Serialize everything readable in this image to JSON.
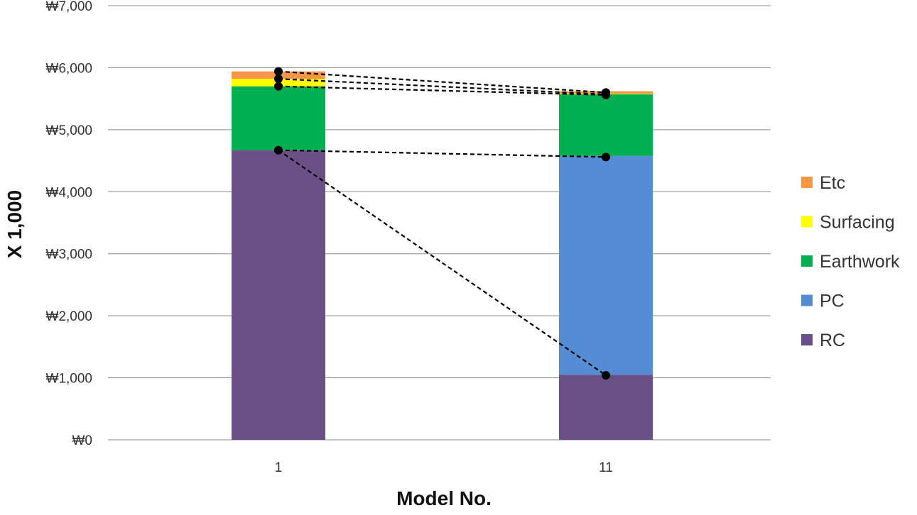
{
  "chart_data": {
    "type": "bar",
    "stacked": true,
    "categories": [
      "1",
      "11"
    ],
    "xlabel": "Model No.",
    "ylabel": "X 1,000",
    "ylim": [
      0,
      7000
    ],
    "yticks": [
      0,
      1000,
      2000,
      3000,
      4000,
      5000,
      6000,
      7000
    ],
    "ytick_labels": [
      "₩0",
      "₩1,000",
      "₩2,000",
      "₩3,000",
      "₩4,000",
      "₩5,000",
      "₩6,000",
      "₩7,000"
    ],
    "grid": true,
    "legend_position": "right",
    "series": [
      {
        "name": "RC",
        "color": "#6a5087",
        "values": [
          4670,
          1050
        ]
      },
      {
        "name": "PC",
        "color": "#548dd4",
        "values": [
          0,
          3530
        ]
      },
      {
        "name": "Earthwork",
        "color": "#00b050",
        "values": [
          1030,
          990
        ]
      },
      {
        "name": "Surfacing",
        "color": "#ffff00",
        "values": [
          120,
          10
        ]
      },
      {
        "name": "Etc",
        "color": "#f79646",
        "values": [
          120,
          40
        ]
      }
    ],
    "connector_lines": [
      {
        "from": 4670,
        "to": 1040
      },
      {
        "from": 4670,
        "to": 4560
      },
      {
        "from": 5700,
        "to": 5560
      },
      {
        "from": 5820,
        "to": 5570
      },
      {
        "from": 5940,
        "to": 5600
      }
    ]
  }
}
